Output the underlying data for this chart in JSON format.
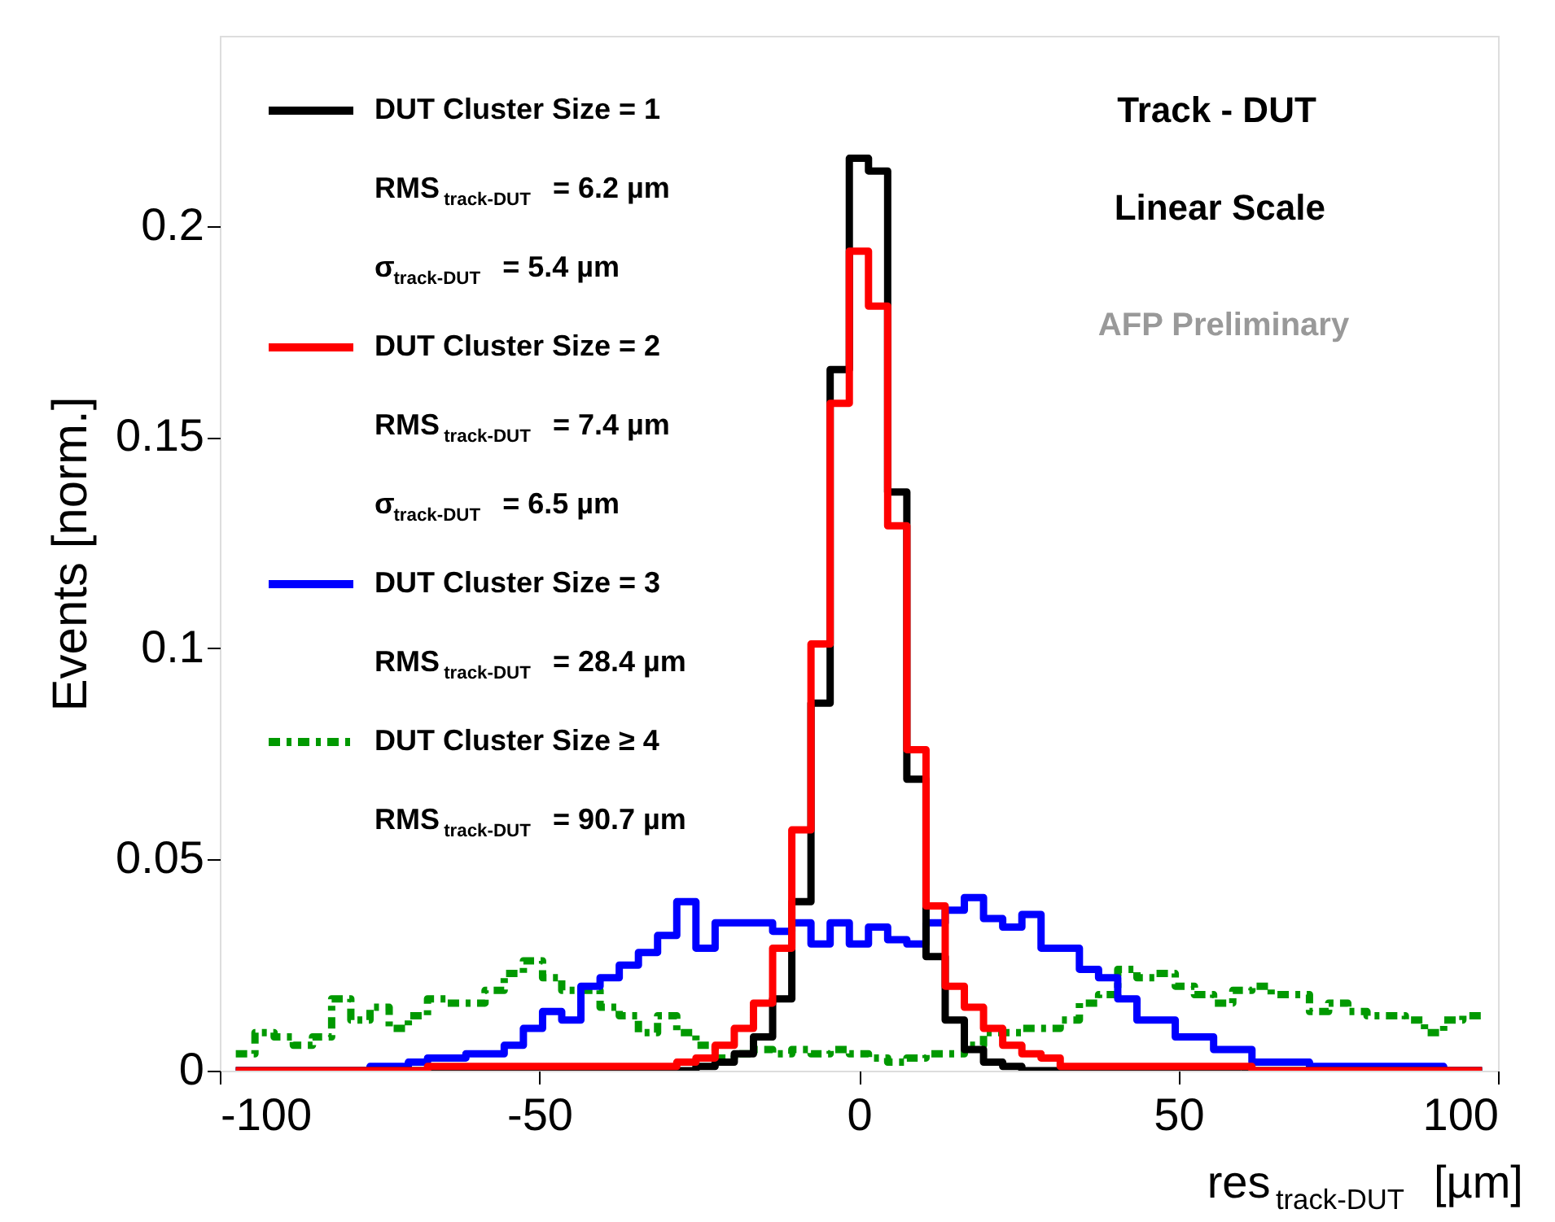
{
  "chart_data": {
    "type": "histogram",
    "xlabel": "res$_{track-DUT}$ [µm]",
    "ylabel": "Events [norm.]",
    "xlim": [
      -100,
      100
    ],
    "ylim": [
      0,
      0.245
    ],
    "xticks": [
      -100,
      -50,
      0,
      50,
      100
    ],
    "yticks": [
      0,
      0.05,
      0.1,
      0.15,
      0.2
    ],
    "legend": "top left",
    "bins": [
      -97.5,
      -94.5,
      -91.5,
      -88.5,
      -85.5,
      -82.5,
      -79.5,
      -76.5,
      -73.5,
      -70.5,
      -67.5,
      -64.5,
      -61.5,
      -58.5,
      -55.5,
      -52.5,
      -49.5,
      -46.5,
      -43.5,
      -40.5,
      -37.5,
      -34.5,
      -31.5,
      -28.5,
      -25.5,
      -22.5,
      -19.5,
      -16.5,
      -13.5,
      -10.5,
      -7.5,
      -4.5,
      -1.5,
      1.5,
      4.5,
      7.5,
      10.5,
      13.5,
      16.5,
      19.5,
      22.5,
      25.5,
      28.5,
      31.5,
      34.5,
      37.5,
      40.5,
      43.5,
      46.5,
      49.5,
      52.5,
      55.5,
      58.5,
      61.5,
      64.5,
      67.5,
      70.5,
      73.5,
      76.5,
      79.5,
      82.5,
      85.5,
      88.5,
      91.5,
      94.5,
      97.5
    ],
    "series": [
      {
        "name": "DUT Cluster Size = 1",
        "color": "#000000",
        "line_style": "solid",
        "values": [
          0,
          0,
          0,
          0,
          0,
          0,
          0,
          0,
          0,
          0,
          0,
          0,
          0,
          0,
          0,
          0,
          0,
          0,
          0,
          0,
          0,
          0,
          0,
          0,
          0.001,
          0.002,
          0.004,
          0.008,
          0.017,
          0.04,
          0.087,
          0.166,
          0.216,
          0.213,
          0.137,
          0.069,
          0.027,
          0.012,
          0.005,
          0.002,
          0.001,
          0,
          0,
          0,
          0,
          0,
          0,
          0,
          0,
          0,
          0,
          0,
          0,
          0,
          0,
          0,
          0,
          0,
          0,
          0,
          0,
          0,
          0,
          0,
          0
        ]
      },
      {
        "name": "DUT Cluster Size = 2",
        "color": "#ff0000",
        "line_style": "solid",
        "values": [
          0,
          0,
          0,
          0,
          0,
          0,
          0,
          0,
          0,
          0,
          0.001,
          0.001,
          0.001,
          0.001,
          0.001,
          0.001,
          0.001,
          0.001,
          0.001,
          0.001,
          0.001,
          0.001,
          0.001,
          0.002,
          0.003,
          0.006,
          0.01,
          0.016,
          0.029,
          0.057,
          0.101,
          0.158,
          0.194,
          0.181,
          0.129,
          0.076,
          0.039,
          0.02,
          0.015,
          0.01,
          0.006,
          0.004,
          0.003,
          0.001,
          0.001,
          0.001,
          0.001,
          0.001,
          0.001,
          0.001,
          0.001,
          0.001,
          0.001,
          0,
          0,
          0,
          0,
          0,
          0,
          0,
          0,
          0,
          0,
          0,
          0
        ]
      },
      {
        "name": "DUT Cluster Size = 3",
        "color": "#0000ff",
        "line_style": "solid",
        "values": [
          0,
          0,
          0,
          0,
          0,
          0,
          0,
          0.001,
          0.001,
          0.002,
          0.003,
          0.003,
          0.004,
          0.004,
          0.006,
          0.01,
          0.014,
          0.012,
          0.02,
          0.022,
          0.025,
          0.028,
          0.032,
          0.04,
          0.029,
          0.035,
          0.035,
          0.035,
          0.033,
          0.035,
          0.03,
          0.035,
          0.03,
          0.034,
          0.031,
          0.03,
          0.035,
          0.038,
          0.041,
          0.036,
          0.034,
          0.037,
          0.029,
          0.029,
          0.024,
          0.022,
          0.017,
          0.012,
          0.012,
          0.008,
          0.008,
          0.005,
          0.005,
          0.002,
          0.002,
          0.002,
          0.001,
          0.001,
          0.001,
          0.001,
          0.001,
          0.001,
          0.001,
          0,
          0
        ]
      },
      {
        "name": "DUT Cluster Size ≥ 4",
        "color": "#009900",
        "line_style": "dashed",
        "values": [
          0.004,
          0.009,
          0.008,
          0.006,
          0.008,
          0.017,
          0.012,
          0.015,
          0.01,
          0.013,
          0.017,
          0.016,
          0.016,
          0.019,
          0.023,
          0.026,
          0.022,
          0.019,
          0.019,
          0.015,
          0.013,
          0.009,
          0.013,
          0.009,
          0.006,
          0.003,
          0.004,
          0.005,
          0.004,
          0.005,
          0.004,
          0.005,
          0.004,
          0.003,
          0.002,
          0.003,
          0.004,
          0.004,
          0.006,
          0.009,
          0.009,
          0.01,
          0.01,
          0.012,
          0.016,
          0.018,
          0.024,
          0.022,
          0.023,
          0.02,
          0.018,
          0.016,
          0.019,
          0.02,
          0.018,
          0.018,
          0.014,
          0.016,
          0.014,
          0.013,
          0.013,
          0.012,
          0.009,
          0.012,
          0.013
        ]
      }
    ],
    "annotations": [
      "RMS$_{track-DUT}$ = 6.2 µm",
      "σ$_{track-DUT}$ = 5.4 µm",
      "RMS$_{track-DUT}$ = 7.4 µm",
      "σ$_{track-DUT}$ = 6.5 µm",
      "RMS$_{track-DUT}$ = 28.4 µm",
      "RMS$_{track-DUT}$ = 90.7 µm",
      "Track - DUT",
      "Linear Scale",
      "AFP Preliminary"
    ]
  }
}
